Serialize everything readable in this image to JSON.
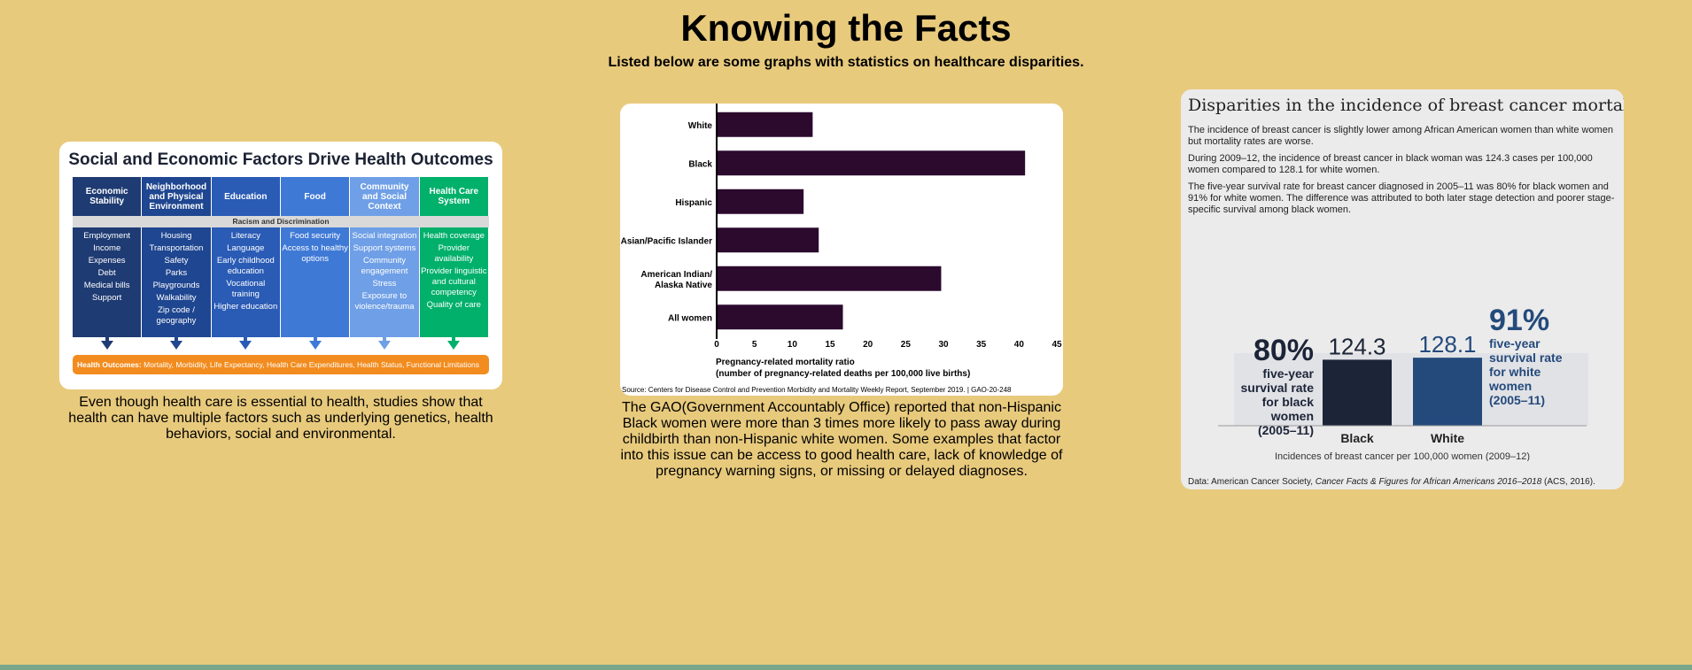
{
  "header": {
    "title": "Knowing the Facts",
    "subtitle": "Listed below are some graphs with statistics on healthcare disparities."
  },
  "card1": {
    "title": "Social and Economic Factors Drive Health Outcomes",
    "racism_label": "Racism and Discrimination",
    "outcomes_label": "Health Outcomes:",
    "outcomes_text": "Mortality, Morbidity, Life Expectancy, Health Care Expenditures, Health Status, Functional Limitations",
    "columns": [
      {
        "heading": "Economic Stability",
        "color": "#1f3b73",
        "items": [
          "Employment",
          "Income",
          "Expenses",
          "Debt",
          "Medical bills",
          "Support"
        ]
      },
      {
        "heading": "Neighborhood and Physical Environment",
        "color": "#1f4690",
        "items": [
          "Housing",
          "Transportation",
          "Safety",
          "Parks",
          "Playgrounds",
          "Walkability",
          "Zip code / geography"
        ]
      },
      {
        "heading": "Education",
        "color": "#2a5bb5",
        "items": [
          "Literacy",
          "Language",
          "Early childhood education",
          "Vocational training",
          "Higher education"
        ]
      },
      {
        "heading": "Food",
        "color": "#3f79d6",
        "items": [
          "Food security",
          "Access to healthy options"
        ]
      },
      {
        "heading": "Community and Social Context",
        "color": "#6f9fe6",
        "items": [
          "Social integration",
          "Support systems",
          "Community engagement",
          "Stress",
          "Exposure to violence/trauma"
        ]
      },
      {
        "heading": "Health Care System",
        "color": "#00b06b",
        "items": [
          "Health coverage",
          "Provider availability",
          "Provider linguistic and cultural competency",
          "Quality of care"
        ]
      }
    ],
    "caption": "Even though health care is essential to health, studies show that health can have multiple factors such as underlying genetics, health behaviors, social and environmental."
  },
  "card2": {
    "caption": "The GAO(Government Accountably Office) reported that non-Hispanic Black women were more than 3 times more likely to pass away during childbirth than non-Hispanic white women. Some examples that factor into this issue can be access to good health care, lack of knowledge of pregnancy warning signs, or missing or delayed diagnoses.",
    "source": "Source: Centers for Disease Control and Prevention Morbidity and Mortality Weekly Report, September 2019.  |  GAO-20-248",
    "bar_color": "#2b0a2e"
  },
  "chart_data": {
    "type": "bar",
    "orientation": "horizontal",
    "categories": [
      "White",
      "Black",
      "Hispanic",
      "Asian/Pacific Islander",
      "American Indian/ Alaska Native",
      "All women"
    ],
    "values": [
      12.7,
      40.8,
      11.5,
      13.5,
      29.7,
      16.7
    ],
    "xlabel": "Pregnancy-related mortality ratio",
    "xlabel2": "(number of pregnancy-related deaths per 100,000 live births)",
    "xlim": [
      0,
      45
    ],
    "xticks": [
      0,
      5,
      10,
      15,
      20,
      25,
      30,
      35,
      40,
      45
    ],
    "grid": false
  },
  "card3": {
    "title": "Disparities in the incidence of breast cancer mortality",
    "para1": "The incidence of breast cancer is slightly lower among African American women than white women but mortality rates are worse.",
    "para2": "During 2009–12, the incidence of breast cancer in black woman was 124.3 cases per 100,000 women compared to 128.1 for white women.",
    "para3": "The five-year survival rate for breast cancer diagnosed in 2005–11 was 80% for black women and 91% for white women. The difference was attributed to both later stage detection and poorer stage-specific survival among black women.",
    "black_value": "124.3",
    "white_value": "128.1",
    "black_pct": "80%",
    "white_pct": "91%",
    "black_survival": [
      "five-year",
      "survival rate",
      "for black",
      "women",
      "(2005–11)"
    ],
    "white_survival": [
      "five-year",
      "survival rate",
      "for white",
      "women",
      "(2005–11)"
    ],
    "black_label": "Black",
    "white_label": "White",
    "axis_caption": "Incidences of breast cancer per 100,000 women (2009–12)",
    "source_prefix": "Data: American Cancer Society, ",
    "source_italic": "Cancer Facts & Figures for African Americans 2016–2018",
    "source_suffix": " (ACS, 2016).",
    "black_color": "#1c2438",
    "white_color": "#244a7c"
  }
}
